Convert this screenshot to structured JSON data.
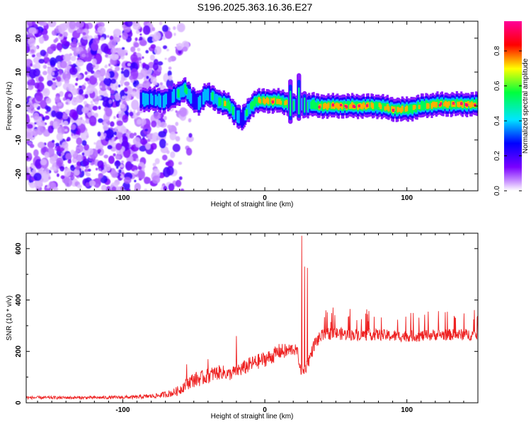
{
  "title": "S196.2025.363.16.36.E27",
  "chart_data": [
    {
      "type": "heatmap",
      "name": "spectrogram",
      "xlabel": "Height of straight line (km)",
      "ylabel": "Frequency (Hz)",
      "xlim": [
        -168,
        150
      ],
      "ylim": [
        -25,
        25
      ],
      "xticks": [
        -100,
        0,
        100
      ],
      "yticks": [
        -20,
        -10,
        0,
        10,
        20
      ],
      "colorbar": {
        "label": "Normalized spectral amplitude",
        "range": [
          0.0,
          0.97
        ],
        "ticks": [
          0.0,
          0.2,
          0.4,
          0.6,
          0.8
        ],
        "tick_labels": [
          "0.0",
          "0.2",
          "0.4",
          "0.6",
          "0.8"
        ],
        "colors": [
          "#ffffff",
          "#7a00ff",
          "#0000ff",
          "#00e5ff",
          "#00ff3c",
          "#ffff00",
          "#ff0000",
          "#ff0099"
        ]
      },
      "noise_region_x": [
        -168,
        -70
      ],
      "ridge": {
        "x": [
          -88,
          -80,
          -72,
          -66,
          -62,
          -57,
          -52,
          -47,
          -42,
          -37,
          -32,
          -27,
          -22,
          -17,
          -12,
          -7,
          -2,
          3,
          8,
          13,
          17,
          20,
          24,
          28,
          32,
          37,
          42,
          50,
          60,
          70,
          80,
          90,
          100,
          110,
          120,
          130,
          140,
          150
        ],
        "y": [
          2,
          2,
          1.5,
          2.5,
          3.5,
          5,
          2,
          1,
          3.5,
          2.5,
          1,
          0.5,
          -2,
          -4,
          -1,
          1.5,
          1.5,
          1.5,
          1.5,
          1,
          0.5,
          0,
          0.5,
          0,
          0.5,
          0,
          0,
          0,
          0,
          0,
          0,
          -1,
          -1,
          0,
          0.5,
          0.5,
          0.5,
          0.5
        ],
        "amplitude": [
          0.45,
          0.4,
          0.4,
          0.35,
          0.5,
          0.55,
          0.35,
          0.4,
          0.5,
          0.45,
          0.6,
          0.7,
          0.45,
          0.35,
          0.5,
          0.65,
          0.8,
          0.9,
          0.85,
          0.8,
          0.6,
          0.5,
          0.45,
          0.45,
          0.55,
          0.8,
          0.9,
          0.9,
          0.92,
          0.9,
          0.7,
          0.85,
          0.75,
          0.7,
          0.88,
          0.9,
          0.92,
          0.9
        ]
      },
      "spikes": [
        {
          "x": 18,
          "y_range": [
            -6,
            9
          ]
        },
        {
          "x": 24,
          "y_range": [
            -5,
            11
          ]
        },
        {
          "x": 28,
          "y_range": [
            -4,
            5
          ]
        }
      ]
    },
    {
      "type": "line",
      "name": "snr",
      "xlabel": "Height of straight line (km)",
      "ylabel": "SNR (10 * v/v)",
      "xlim": [
        -168,
        150
      ],
      "ylim": [
        0,
        660
      ],
      "xticks": [
        -100,
        0,
        100
      ],
      "yticks": [
        0,
        200,
        400,
        600
      ],
      "color": "#ee2222",
      "envelope": {
        "x": [
          -168,
          -120,
          -90,
          -75,
          -65,
          -60,
          -55,
          -50,
          -45,
          -40,
          -35,
          -30,
          -25,
          -20,
          -15,
          -10,
          -5,
          0,
          5,
          10,
          15,
          20,
          23,
          25,
          27,
          30,
          35,
          40,
          45,
          50,
          60,
          70,
          80,
          90,
          100,
          110,
          120,
          130,
          140,
          150
        ],
        "base": [
          20,
          20,
          22,
          28,
          38,
          50,
          75,
          90,
          95,
          105,
          115,
          120,
          110,
          125,
          135,
          150,
          160,
          170,
          180,
          200,
          200,
          210,
          200,
          130,
          120,
          150,
          230,
          260,
          270,
          270,
          265,
          265,
          265,
          260,
          260,
          260,
          265,
          265,
          265,
          265
        ],
        "spread": [
          12,
          12,
          14,
          20,
          30,
          40,
          50,
          60,
          60,
          60,
          60,
          55,
          50,
          55,
          60,
          60,
          60,
          60,
          60,
          60,
          60,
          50,
          40,
          40,
          40,
          50,
          50,
          50,
          50,
          50,
          45,
          45,
          45,
          45,
          45,
          45,
          45,
          45,
          45,
          45
        ]
      },
      "peaks": [
        {
          "x": 26,
          "y": 650
        },
        {
          "x": 28,
          "y": 530
        },
        {
          "x": 30,
          "y": 525
        },
        {
          "x": -55,
          "y": 150
        },
        {
          "x": -40,
          "y": 170
        },
        {
          "x": -20,
          "y": 260
        },
        {
          "x": 43,
          "y": 360
        },
        {
          "x": 60,
          "y": 365
        }
      ]
    }
  ]
}
